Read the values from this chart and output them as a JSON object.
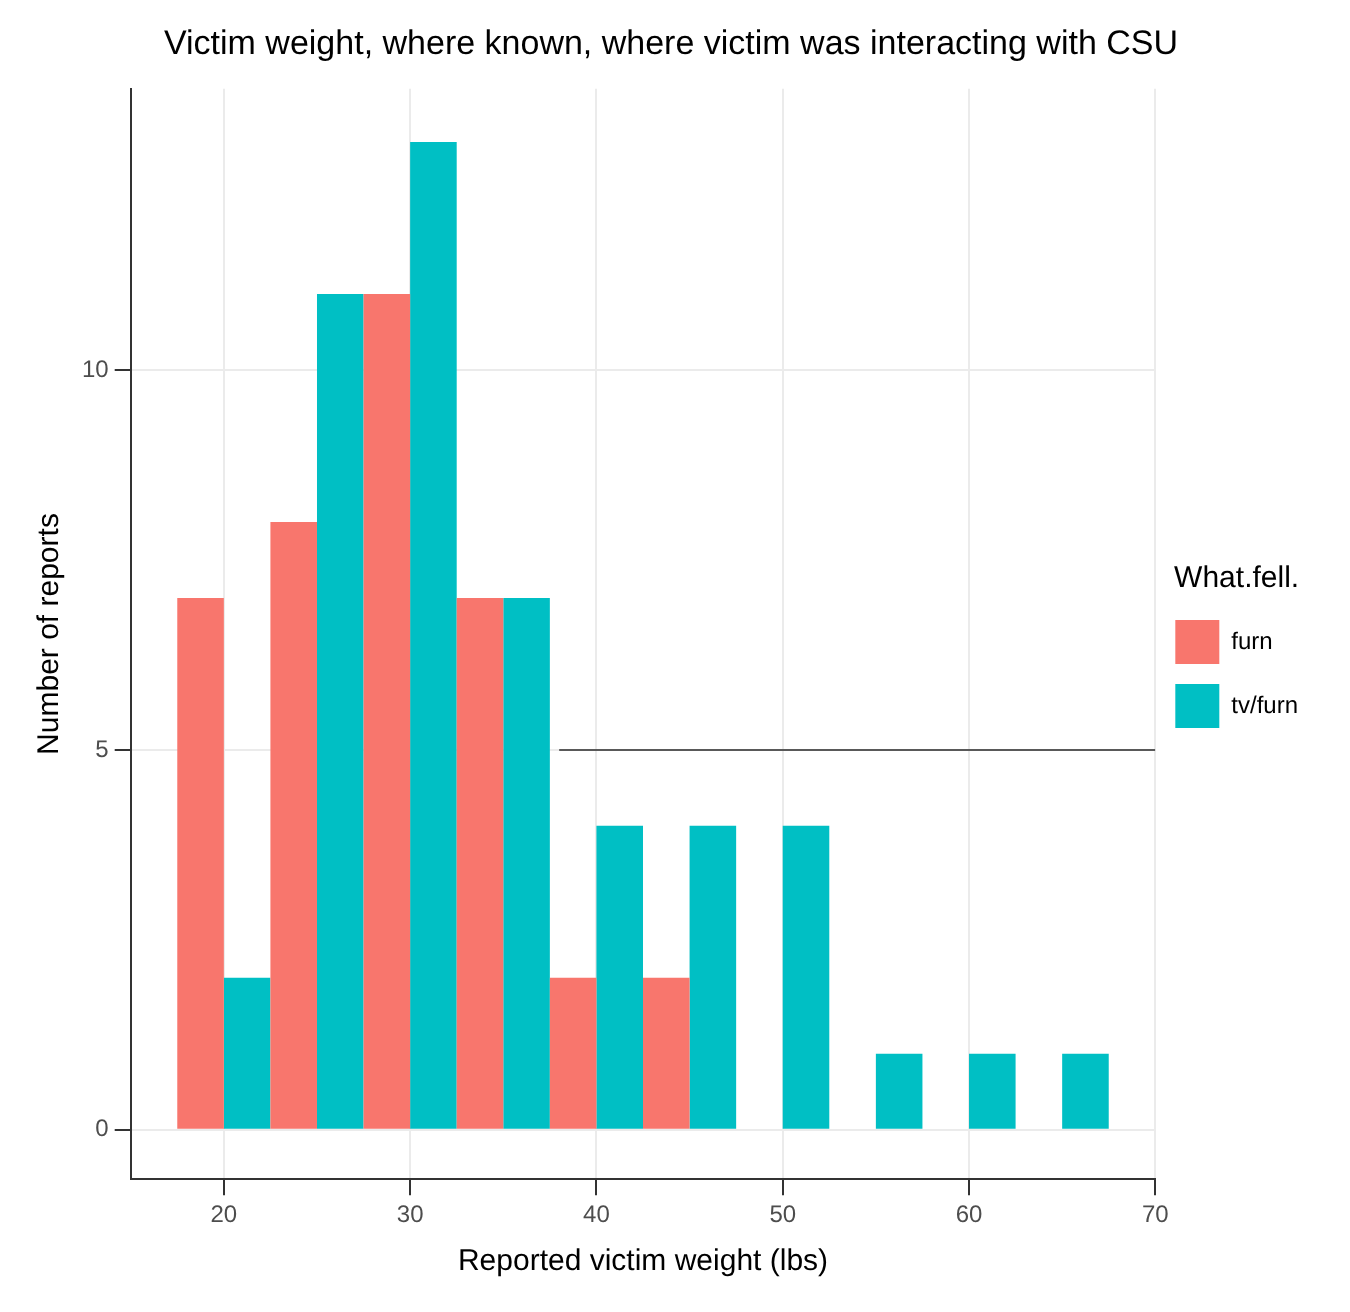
{
  "chart_data": {
    "type": "histogram",
    "title": "Victim weight, where known, where victim was interacting with CSU",
    "xlabel": "Reported victim weight (lbs)",
    "ylabel": "Number of reports",
    "legend_title": "What.fell.",
    "bins": [
      17.5,
      22.5,
      27.5,
      32.5,
      37.5,
      42.5,
      47.5,
      52.5,
      57.5,
      62.5,
      67.5
    ],
    "series": [
      {
        "name": "furn",
        "color": "#f8766d",
        "values": [
          7,
          8,
          11,
          7,
          2,
          2,
          0,
          0,
          0,
          0
        ]
      },
      {
        "name": "tv/furn",
        "color": "#00bfc4",
        "values": [
          2,
          11,
          13,
          7,
          4,
          4,
          4,
          1,
          1,
          1
        ]
      },
      {
        "type": "line",
        "color": "#595959",
        "x": [
          38,
          70
        ],
        "values": [
          5,
          5
        ]
      }
    ],
    "xlim": [
      15,
      70
    ],
    "xticks": [
      20,
      30,
      40,
      50,
      60,
      70
    ],
    "ylim": [
      -0.65,
      13.7
    ],
    "yticks": [
      0,
      5,
      10
    ],
    "grid": true,
    "legend": "right"
  }
}
